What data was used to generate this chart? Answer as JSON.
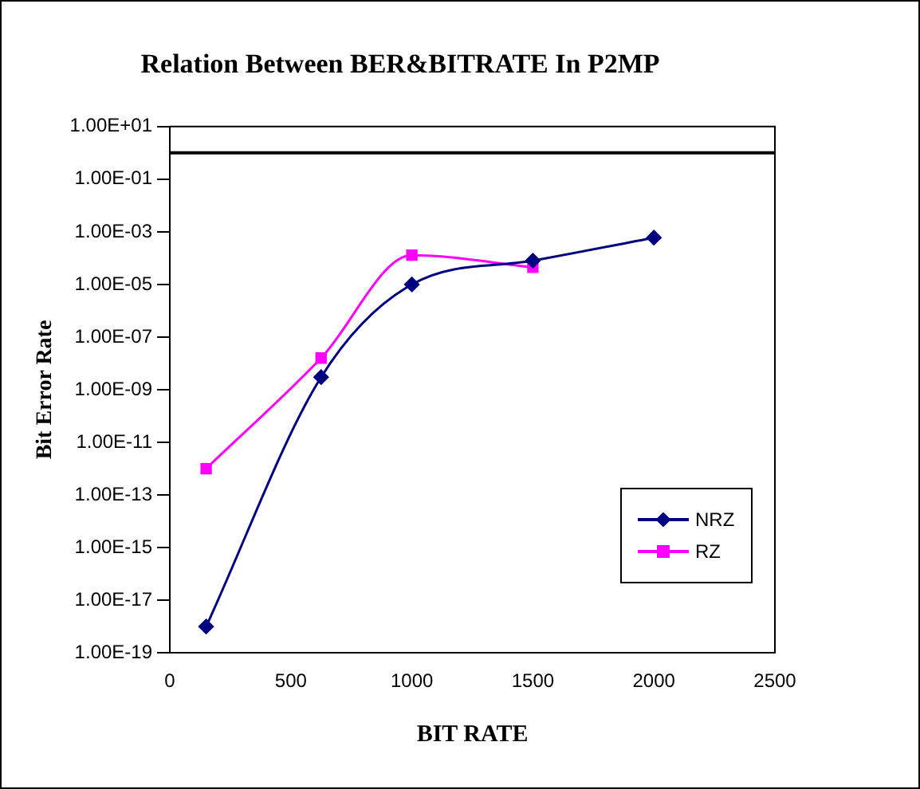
{
  "chart_data": {
    "type": "line",
    "title": "Relation Between BER&BITRATE In P2MP",
    "xlabel": "BIT RATE",
    "ylabel": "Bit Error Rate",
    "log": "y",
    "xlim": [
      0,
      2500
    ],
    "xticks": [
      0,
      500,
      1000,
      1500,
      2000,
      2500
    ],
    "ylim": [
      1e-19,
      10
    ],
    "yticks": [
      {
        "value": 10,
        "label": "1.00E+01"
      },
      {
        "value": 0.1,
        "label": "1.00E-01"
      },
      {
        "value": 0.001,
        "label": "1.00E-03"
      },
      {
        "value": 1e-05,
        "label": "1.00E-05"
      },
      {
        "value": 1e-07,
        "label": "1.00E-07"
      },
      {
        "value": 1e-09,
        "label": "1.00E-09"
      },
      {
        "value": 1e-11,
        "label": "1.00E-11"
      },
      {
        "value": 1e-13,
        "label": "1.00E-13"
      },
      {
        "value": 1e-15,
        "label": "1.00E-15"
      },
      {
        "value": 1e-17,
        "label": "1.00E-17"
      },
      {
        "value": 1e-19,
        "label": "1.00E-19"
      }
    ],
    "grid": false,
    "legend": "right",
    "ref_lines": [
      {
        "axis": "y",
        "value": 1,
        "color": "#000000"
      }
    ],
    "series": [
      {
        "name": "NRZ",
        "color": "#000080",
        "marker": "diamond",
        "x": [
          150,
          625,
          1000,
          1500,
          2000
        ],
        "values": [
          1e-18,
          3e-09,
          1e-05,
          8e-05,
          0.0006
        ]
      },
      {
        "name": "RZ",
        "color": "#ff00ff",
        "marker": "square",
        "x": [
          150,
          625,
          1000,
          1500
        ],
        "values": [
          1e-12,
          1.6e-08,
          0.00013,
          4.5e-05
        ]
      }
    ]
  }
}
